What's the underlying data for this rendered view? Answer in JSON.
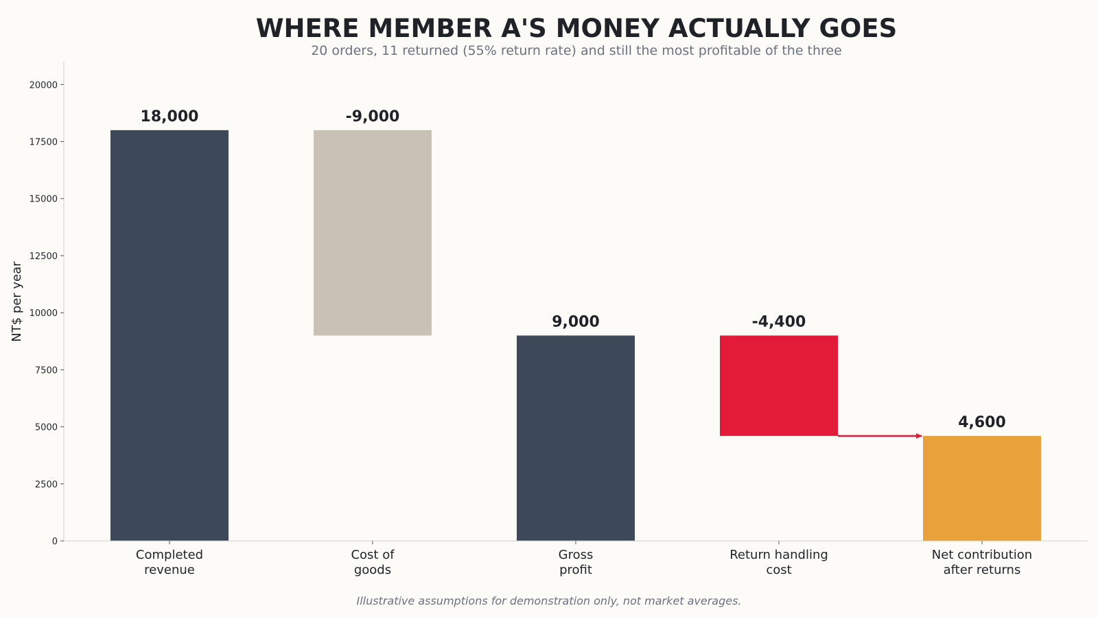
{
  "chart_data": {
    "type": "bar",
    "subtype": "waterfall",
    "title": "WHERE MEMBER A'S MONEY ACTUALLY GOES",
    "subtitle": "20 orders, 11 returned (55% return rate) and still the most profitable of the three",
    "ylabel": "NT$ per year",
    "xlabel": "",
    "ylim": [
      0,
      21000
    ],
    "yticks": [
      0,
      2500,
      5000,
      7500,
      10000,
      12500,
      15000,
      17500,
      20000
    ],
    "grid": false,
    "footnote": "Illustrative assumptions for demonstration only, not market averages.",
    "bars": [
      {
        "category": [
          "Completed",
          "revenue"
        ],
        "kind": "total",
        "start": 0,
        "end": 18000,
        "label": "18,000",
        "color": "#3d4959"
      },
      {
        "category": [
          "Cost of",
          "goods"
        ],
        "kind": "delta",
        "start": 18000,
        "end": 9000,
        "label": "-9,000",
        "color": "#c9c1b4"
      },
      {
        "category": [
          "Gross",
          "profit"
        ],
        "kind": "total",
        "start": 0,
        "end": 9000,
        "label": "9,000",
        "color": "#3d4959"
      },
      {
        "category": [
          "Return handling",
          "cost"
        ],
        "kind": "delta",
        "start": 9000,
        "end": 4600,
        "label": "-4,400",
        "color": "#e31a38"
      },
      {
        "category": [
          "Net contribution",
          "after returns"
        ],
        "kind": "total",
        "start": 0,
        "end": 4600,
        "label": "4,600",
        "color": "#e8a23b"
      }
    ],
    "connector": {
      "from_bar": 3,
      "to_bar": 4,
      "value": 4600,
      "color": "#e31a38"
    }
  }
}
